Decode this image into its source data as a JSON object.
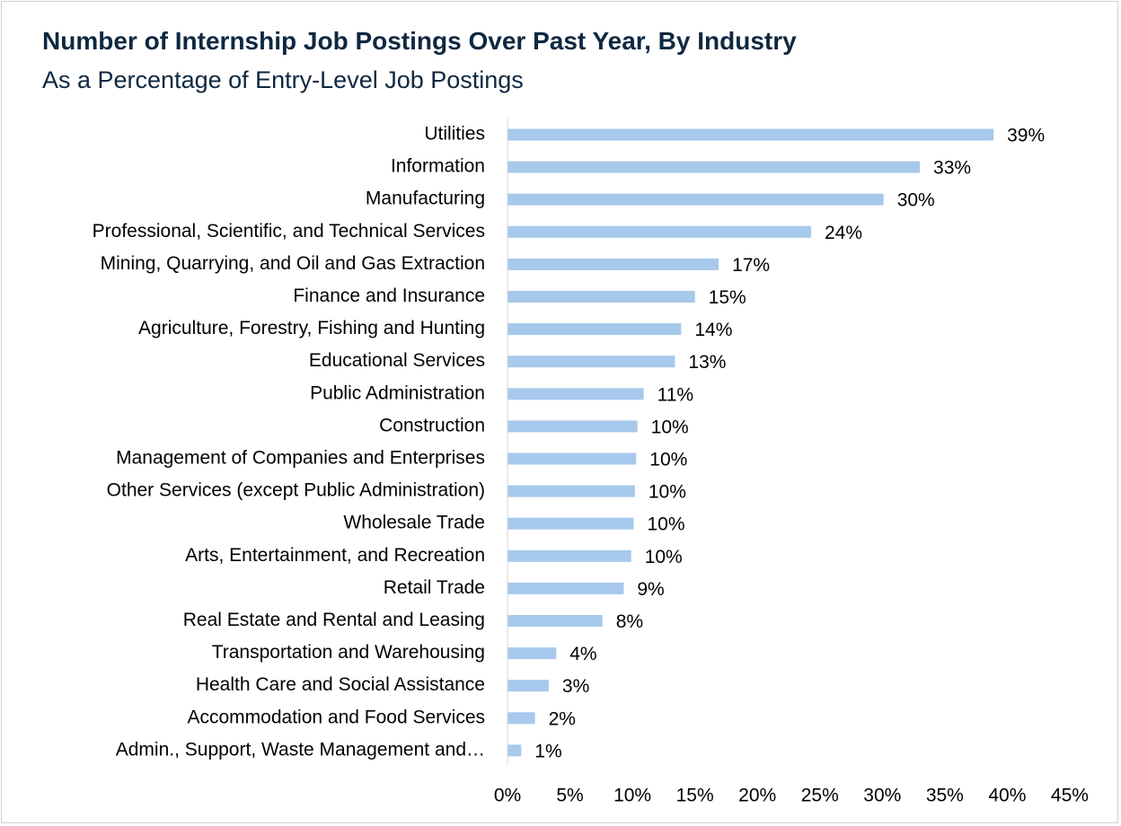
{
  "chart_data": {
    "type": "bar",
    "orientation": "horizontal",
    "title": "Number of Internship Job Postings Over Past Year, By Industry",
    "subtitle": "As a Percentage of Entry-Level Job Postings",
    "categories": [
      "Utilities",
      "Information",
      "Manufacturing",
      "Professional, Scientific, and Technical Services",
      "Mining, Quarrying, and Oil and Gas Extraction",
      "Finance and Insurance",
      "Agriculture, Forestry, Fishing and Hunting",
      "Educational Services",
      "Public Administration",
      "Construction",
      "Management of Companies and Enterprises",
      "Other Services (except Public Administration)",
      "Wholesale Trade",
      "Arts, Entertainment, and Recreation",
      "Retail Trade",
      "Real Estate and Rental and Leasing",
      "Transportation and Warehousing",
      "Health Care and Social Assistance",
      "Accommodation and Food Services",
      "Admin., Support, Waste Management and…"
    ],
    "values": [
      38.9,
      33.0,
      30.1,
      24.3,
      16.9,
      15.0,
      13.9,
      13.4,
      10.9,
      10.4,
      10.3,
      10.2,
      10.1,
      9.9,
      9.3,
      7.6,
      3.9,
      3.3,
      2.2,
      1.1
    ],
    "data_labels": [
      "39%",
      "33%",
      "30%",
      "24%",
      "17%",
      "15%",
      "14%",
      "13%",
      "11%",
      "10%",
      "10%",
      "10%",
      "10%",
      "10%",
      "9%",
      "8%",
      "4%",
      "3%",
      "2%",
      "1%"
    ],
    "xlim": [
      0,
      45
    ],
    "x_ticks": [
      "0%",
      "5%",
      "10%",
      "15%",
      "20%",
      "25%",
      "30%",
      "35%",
      "40%",
      "45%"
    ],
    "xlabel": "",
    "ylabel": "",
    "grid": false,
    "legend": "none",
    "bar_color": "#a6c9ec",
    "text_color": "#000000",
    "title_color": "#0e2841"
  }
}
